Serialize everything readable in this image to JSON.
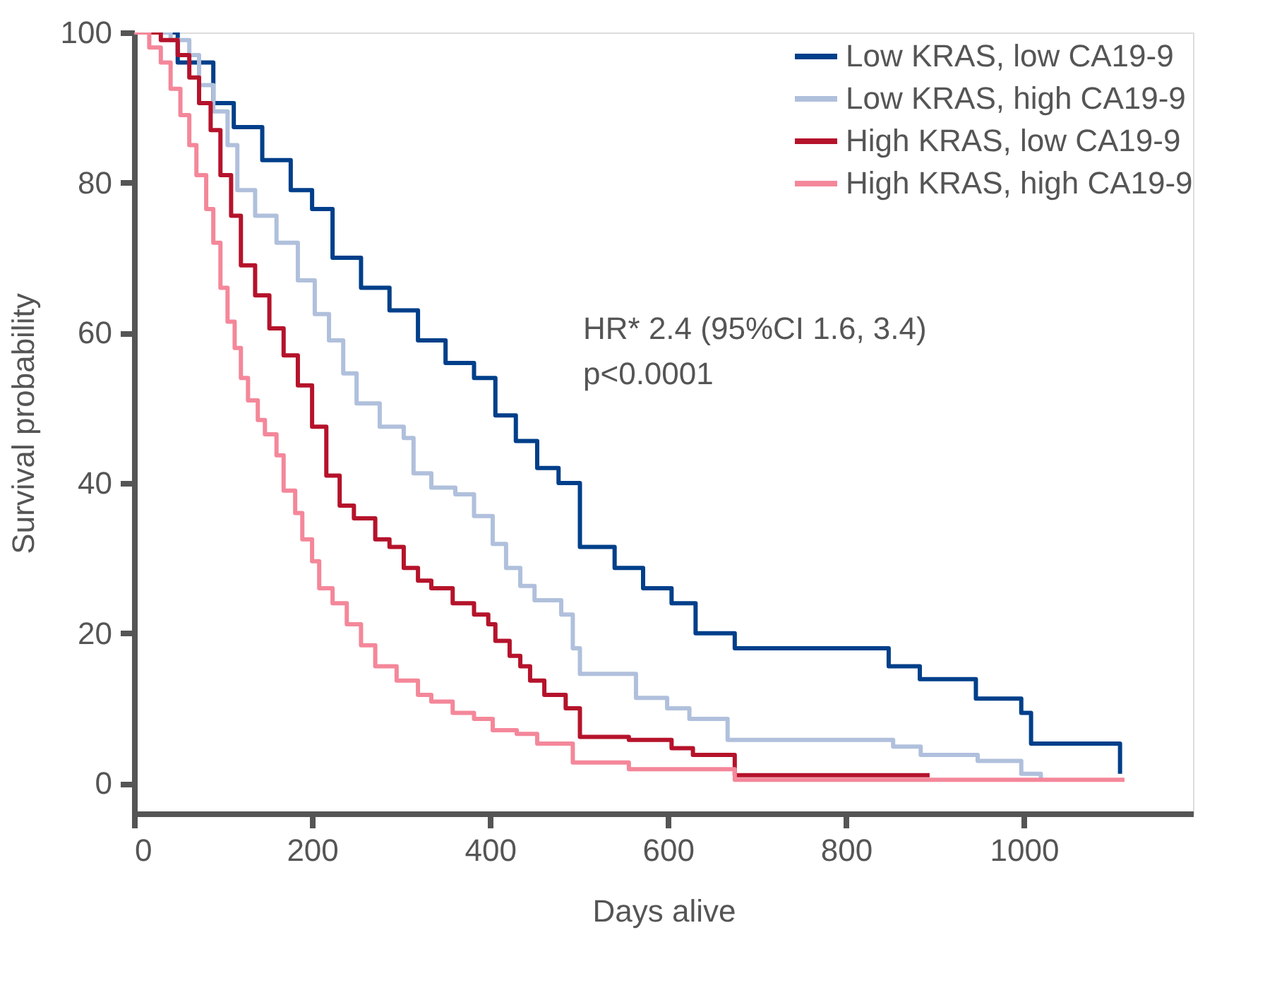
{
  "chart_data": {
    "type": "step",
    "xlabel": "Days alive",
    "ylabel": "Survival probability",
    "xlim": [
      0,
      1190
    ],
    "ylim": [
      -4,
      100
    ],
    "xticks": [
      0,
      200,
      400,
      600,
      800,
      1000
    ],
    "yticks": [
      0,
      20,
      40,
      60,
      80,
      100
    ],
    "grid": false,
    "legend": "top right",
    "line_style": "solid",
    "marker": "none",
    "annotations": [
      "HR* 2.4 (95%CI 1.6, 3.4)",
      "p<0.0001"
    ],
    "series": [
      {
        "name": "Low KRAS, low CA19-9",
        "color": "#003f8a",
        "x": [
          0,
          49,
          89,
          112,
          144,
          176,
          200,
          223,
          255,
          287,
          319,
          350,
          382,
          406,
          429,
          453,
          477,
          501,
          540,
          572,
          604,
          631,
          675,
          848,
          883,
          946,
          997,
          1008,
          1108
        ],
        "values": [
          100,
          96,
          90.6,
          87.4,
          83,
          79,
          76.5,
          70,
          66,
          63,
          59,
          56,
          54,
          49,
          45.6,
          42,
          40,
          31.5,
          28.7,
          26,
          24,
          20,
          18,
          15.6,
          13.9,
          11.3,
          9.4,
          5.3,
          1.3
        ]
      },
      {
        "name": "Low KRAS, high CA19-9",
        "color": "#b0c0dc",
        "x": [
          0,
          41,
          62,
          73,
          89,
          105,
          116,
          136,
          160,
          184,
          203,
          219,
          235,
          250,
          276,
          303,
          314,
          334,
          361,
          382,
          403,
          418,
          434,
          450,
          480,
          493,
          501,
          564,
          599,
          624,
          667,
          853,
          884,
          948,
          997,
          1019
        ],
        "values": [
          100,
          99,
          97,
          93,
          89.5,
          85,
          79,
          75.6,
          72,
          67,
          62.5,
          59,
          54.6,
          50.6,
          47.5,
          46,
          41.3,
          39.4,
          38.5,
          35.6,
          31.9,
          28.7,
          26.3,
          24.4,
          22.5,
          18,
          14.6,
          11.4,
          10,
          8.6,
          5.8,
          4.9,
          3.8,
          3,
          1.3,
          0.5
        ]
      },
      {
        "name": "High KRAS, low CA19-9",
        "color": "#b5132b",
        "x": [
          0,
          30,
          49,
          62,
          73,
          86,
          97,
          109,
          120,
          136,
          152,
          168,
          184,
          200,
          216,
          231,
          247,
          271,
          287,
          303,
          319,
          334,
          358,
          382,
          398,
          406,
          422,
          434,
          445,
          461,
          485,
          501,
          556,
          604,
          628,
          675,
          894
        ],
        "values": [
          100,
          99,
          97,
          94,
          90.6,
          87,
          81,
          75.6,
          69,
          65,
          60.6,
          57,
          53,
          47.5,
          41,
          37,
          35.3,
          32.5,
          31.5,
          28.7,
          27,
          26,
          24,
          22.5,
          21.2,
          19,
          17,
          15.6,
          13.7,
          11.8,
          10,
          6.2,
          5.8,
          4.7,
          3.8,
          1.1,
          1.1
        ]
      },
      {
        "name": "High KRAS, high CA19-9",
        "color": "#f4879a",
        "x": [
          0,
          17,
          30,
          41,
          52,
          62,
          70,
          81,
          89,
          97,
          105,
          113,
          120,
          128,
          139,
          147,
          160,
          168,
          181,
          189,
          200,
          208,
          223,
          239,
          255,
          271,
          295,
          319,
          334,
          358,
          382,
          403,
          430,
          453,
          493,
          556,
          675,
          1113
        ],
        "values": [
          100,
          98,
          96,
          92.5,
          89,
          85,
          81,
          76.5,
          72,
          66,
          61.5,
          58,
          54,
          51,
          48.4,
          46.5,
          43.7,
          39,
          36,
          32.5,
          29.6,
          26,
          24,
          21.2,
          18.4,
          15.6,
          13.7,
          11.8,
          10.9,
          9.4,
          8.6,
          7.1,
          6.6,
          5.3,
          2.8,
          1.9,
          0.5,
          0.5
        ]
      }
    ]
  }
}
